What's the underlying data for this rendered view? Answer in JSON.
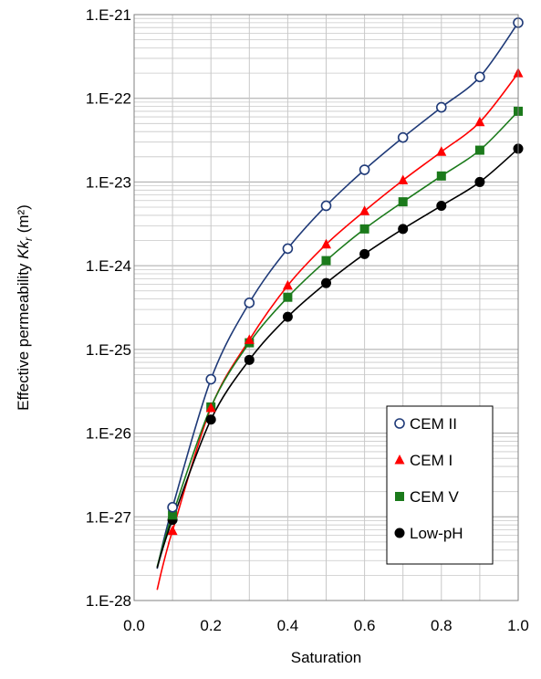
{
  "chart_data": {
    "type": "scatter",
    "xlabel": "Saturation",
    "ylabel_prefix": "Effective permeability ",
    "ylabel_italic": "Kk",
    "ylabel_sub": "r",
    "ylabel_suffix": " (m²)",
    "xlim": [
      0.0,
      1.0
    ],
    "ylim": [
      1e-28,
      1e-21
    ],
    "yscale": "log",
    "grid": "on",
    "legend_position": "bottom-right",
    "x_ticks": [
      "0.0",
      "0.2",
      "0.4",
      "0.6",
      "0.8",
      "1.0"
    ],
    "y_ticks": [
      "1.E-28",
      "1.E-27",
      "1.E-26",
      "1.E-25",
      "1.E-24",
      "1.E-23",
      "1.E-22",
      "1.E-21"
    ],
    "series": [
      {
        "name": "CEM II",
        "color": "#1f3a78",
        "marker": "open-circle",
        "x": [
          0.1,
          0.2,
          0.3,
          0.4,
          0.5,
          0.6,
          0.7,
          0.8,
          0.9,
          1.0
        ],
        "y": [
          1.3e-27,
          4.4e-26,
          3.6e-25,
          1.6e-24,
          5.2e-24,
          1.4e-23,
          3.4e-23,
          7.8e-23,
          1.8e-22,
          8e-22
        ]
      },
      {
        "name": "CEM I",
        "color": "#ff0000",
        "marker": "triangle",
        "x": [
          0.1,
          0.2,
          0.3,
          0.4,
          0.5,
          0.6,
          0.7,
          0.8,
          0.9,
          1.0
        ],
        "y": [
          6.8e-28,
          2e-26,
          1.3e-25,
          5.8e-25,
          1.8e-24,
          4.5e-24,
          1.05e-23,
          2.3e-23,
          5.2e-23,
          2e-22
        ]
      },
      {
        "name": "CEM V",
        "color": "#1b7a1b",
        "marker": "square",
        "x": [
          0.1,
          0.2,
          0.3,
          0.4,
          0.5,
          0.6,
          0.7,
          0.8,
          0.9,
          1.0
        ],
        "y": [
          1.05e-27,
          2.05e-26,
          1.2e-25,
          4.2e-25,
          1.15e-24,
          2.75e-24,
          5.8e-24,
          1.18e-23,
          2.4e-23,
          7e-23
        ]
      },
      {
        "name": "Low-pH",
        "color": "#000000",
        "marker": "filled-circle",
        "x": [
          0.1,
          0.2,
          0.3,
          0.4,
          0.5,
          0.6,
          0.7,
          0.8,
          0.9,
          1.0
        ],
        "y": [
          9.2e-28,
          1.45e-26,
          7.5e-26,
          2.45e-25,
          6.2e-25,
          1.38e-24,
          2.75e-24,
          5.2e-24,
          1e-23,
          2.5e-23
        ]
      }
    ]
  }
}
